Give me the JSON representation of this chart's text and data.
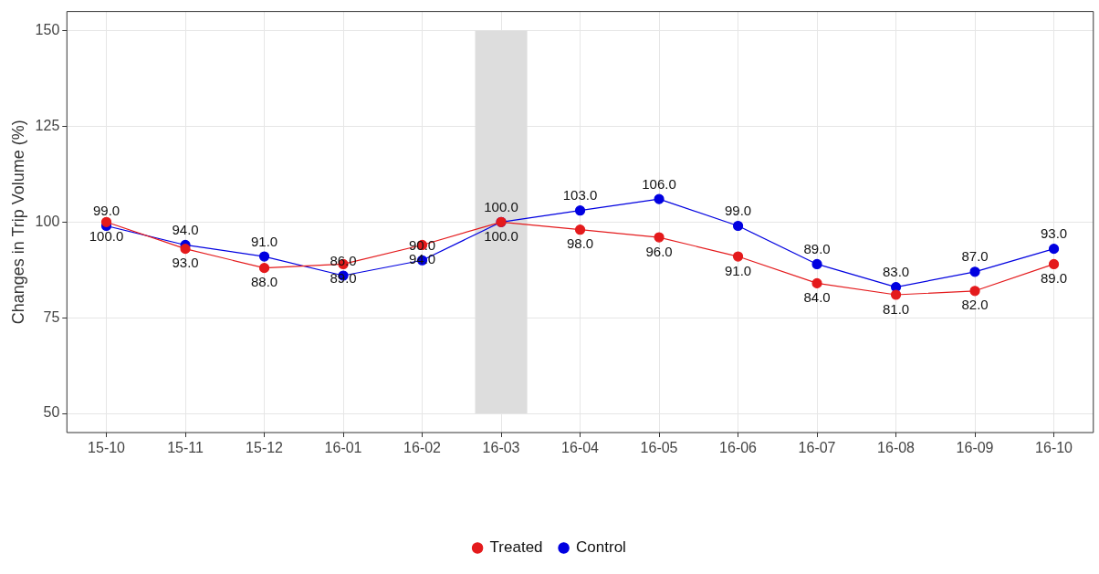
{
  "chart_data": {
    "type": "line",
    "ylabel": "Changes in Trip Volume (%)",
    "categories": [
      "15-10",
      "15-11",
      "15-12",
      "16-01",
      "16-02",
      "16-03",
      "16-04",
      "16-05",
      "16-06",
      "16-07",
      "16-08",
      "16-09",
      "16-10"
    ],
    "series": [
      {
        "name": "Treated",
        "color": "#e41a1c",
        "values": [
          100,
          93,
          88,
          89,
          94,
          100,
          98,
          96,
          91,
          84,
          81,
          82,
          89
        ],
        "value_labels": [
          "100.0",
          "93.0",
          "88.0",
          "89.0",
          "94.0",
          "100.0",
          "98.0",
          "96.0",
          "91.0",
          "84.0",
          "81.0",
          "82.0",
          "89.0"
        ]
      },
      {
        "name": "Control",
        "color": "#0000e0",
        "values": [
          99,
          94,
          91,
          86,
          90,
          100,
          103,
          106,
          99,
          89,
          83,
          87,
          93
        ],
        "value_labels": [
          "99.0",
          "94.0",
          "91.0",
          "86.0",
          "90.0",
          "100.0",
          "103.0",
          "106.0",
          "99.0",
          "89.0",
          "83.0",
          "87.0",
          "93.0"
        ]
      }
    ],
    "ylim": [
      45,
      155
    ],
    "yticks": [
      50,
      75,
      100,
      125,
      150
    ],
    "bands": [
      {
        "axis": "x",
        "from": "16-03",
        "to": "16-03",
        "color": "#dddddd"
      }
    ],
    "grid": true,
    "legend": "bottom",
    "marker": "circle",
    "line_style": "solid"
  }
}
